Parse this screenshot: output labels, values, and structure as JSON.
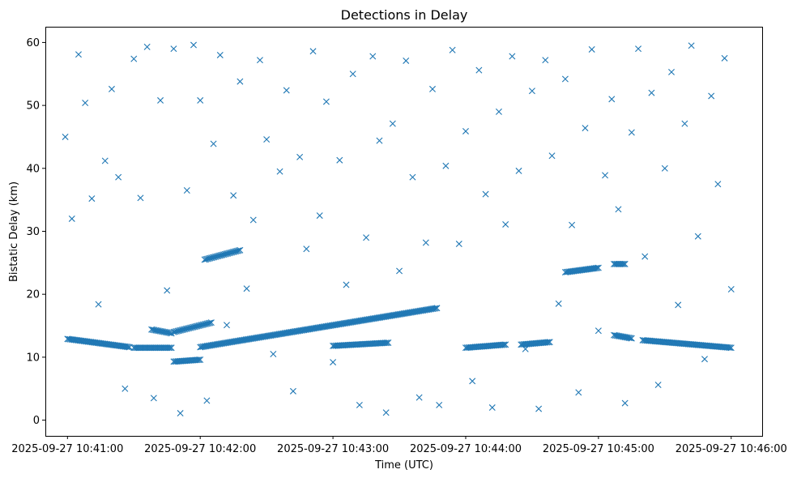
{
  "chart_data": {
    "type": "scatter",
    "title": "Detections in Delay",
    "xlabel": "Time (UTC)",
    "ylabel": "Bistatic Delay (km)",
    "x_ticks": [
      "2025-09-27 10:41:00",
      "2025-09-27 10:42:00",
      "2025-09-27 10:43:00",
      "2025-09-27 10:44:00",
      "2025-09-27 10:45:00",
      "2025-09-27 10:46:00"
    ],
    "y_ticks": [
      "0",
      "10",
      "20",
      "30",
      "40",
      "50",
      "60"
    ],
    "xlim": [
      "2025-09-27 10:40:50",
      "2025-09-27 10:46:14"
    ],
    "ylim": [
      -2.5,
      62.5
    ],
    "grid": false,
    "marker": "x",
    "color": "#1f77b4",
    "series": [
      {
        "tracks": [
          {
            "start": "2025-09-27 10:41:00",
            "end": "2025-09-27 10:41:28",
            "y_start": 12.9,
            "y_end": 11.6
          },
          {
            "start": "2025-09-27 10:41:30",
            "end": "2025-09-27 10:41:47",
            "y_start": 11.5,
            "y_end": 11.5
          },
          {
            "start": "2025-09-27 10:41:38",
            "end": "2025-09-27 10:41:47",
            "y_start": 14.4,
            "y_end": 13.8
          },
          {
            "start": "2025-09-27 10:41:48",
            "end": "2025-09-27 10:42:05",
            "y_start": 14.0,
            "y_end": 15.5
          },
          {
            "start": "2025-09-27 10:41:48",
            "end": "2025-09-27 10:42:00",
            "y_start": 9.3,
            "y_end": 9.6
          },
          {
            "start": "2025-09-27 10:42:00",
            "end": "2025-09-27 10:43:47",
            "y_start": 11.6,
            "y_end": 17.8
          },
          {
            "start": "2025-09-27 10:42:02",
            "end": "2025-09-27 10:42:18",
            "y_start": 25.5,
            "y_end": 27.0
          },
          {
            "start": "2025-09-27 10:43:00",
            "end": "2025-09-27 10:43:25",
            "y_start": 11.8,
            "y_end": 12.3
          },
          {
            "start": "2025-09-27 10:44:00",
            "end": "2025-09-27 10:44:18",
            "y_start": 11.5,
            "y_end": 12.0
          },
          {
            "start": "2025-09-27 10:44:25",
            "end": "2025-09-27 10:44:38",
            "y_start": 12.0,
            "y_end": 12.4
          },
          {
            "start": "2025-09-27 10:44:45",
            "end": "2025-09-27 10:45:00",
            "y_start": 23.5,
            "y_end": 24.2
          },
          {
            "start": "2025-09-27 10:45:07",
            "end": "2025-09-27 10:45:12",
            "y_start": 24.8,
            "y_end": 24.8
          },
          {
            "start": "2025-09-27 10:45:07",
            "end": "2025-09-27 10:45:15",
            "y_start": 13.5,
            "y_end": 13.0
          },
          {
            "start": "2025-09-27 10:45:20",
            "end": "2025-09-27 10:46:00",
            "y_start": 12.7,
            "y_end": 11.5
          }
        ],
        "scattered_detections": [
          [
            "2025-09-27 10:40:59",
            45.0
          ],
          [
            "2025-09-27 10:41:02",
            32.0
          ],
          [
            "2025-09-27 10:41:05",
            58.1
          ],
          [
            "2025-09-27 10:41:08",
            50.4
          ],
          [
            "2025-09-27 10:41:11",
            35.2
          ],
          [
            "2025-09-27 10:41:14",
            18.4
          ],
          [
            "2025-09-27 10:41:17",
            41.2
          ],
          [
            "2025-09-27 10:41:20",
            52.6
          ],
          [
            "2025-09-27 10:41:23",
            38.6
          ],
          [
            "2025-09-27 10:41:26",
            5.0
          ],
          [
            "2025-09-27 10:41:30",
            57.4
          ],
          [
            "2025-09-27 10:41:33",
            35.3
          ],
          [
            "2025-09-27 10:41:36",
            59.3
          ],
          [
            "2025-09-27 10:41:39",
            3.5
          ],
          [
            "2025-09-27 10:41:42",
            50.8
          ],
          [
            "2025-09-27 10:41:45",
            20.6
          ],
          [
            "2025-09-27 10:41:48",
            59.0
          ],
          [
            "2025-09-27 10:41:51",
            1.1
          ],
          [
            "2025-09-27 10:41:54",
            36.5
          ],
          [
            "2025-09-27 10:41:57",
            59.6
          ],
          [
            "2025-09-27 10:42:00",
            50.8
          ],
          [
            "2025-09-27 10:42:03",
            3.1
          ],
          [
            "2025-09-27 10:42:06",
            43.9
          ],
          [
            "2025-09-27 10:42:09",
            58.0
          ],
          [
            "2025-09-27 10:42:12",
            15.1
          ],
          [
            "2025-09-27 10:42:15",
            35.7
          ],
          [
            "2025-09-27 10:42:18",
            53.8
          ],
          [
            "2025-09-27 10:42:21",
            20.9
          ],
          [
            "2025-09-27 10:42:24",
            31.8
          ],
          [
            "2025-09-27 10:42:27",
            57.2
          ],
          [
            "2025-09-27 10:42:30",
            44.6
          ],
          [
            "2025-09-27 10:42:33",
            10.5
          ],
          [
            "2025-09-27 10:42:36",
            39.5
          ],
          [
            "2025-09-27 10:42:39",
            52.4
          ],
          [
            "2025-09-27 10:42:42",
            4.6
          ],
          [
            "2025-09-27 10:42:45",
            41.8
          ],
          [
            "2025-09-27 10:42:48",
            27.2
          ],
          [
            "2025-09-27 10:42:51",
            58.6
          ],
          [
            "2025-09-27 10:42:54",
            32.5
          ],
          [
            "2025-09-27 10:42:57",
            50.6
          ],
          [
            "2025-09-27 10:43:00",
            9.2
          ],
          [
            "2025-09-27 10:43:03",
            41.3
          ],
          [
            "2025-09-27 10:43:06",
            21.5
          ],
          [
            "2025-09-27 10:43:09",
            55.0
          ],
          [
            "2025-09-27 10:43:12",
            2.4
          ],
          [
            "2025-09-27 10:43:15",
            29.0
          ],
          [
            "2025-09-27 10:43:18",
            57.8
          ],
          [
            "2025-09-27 10:43:21",
            44.4
          ],
          [
            "2025-09-27 10:43:24",
            1.2
          ],
          [
            "2025-09-27 10:43:27",
            47.1
          ],
          [
            "2025-09-27 10:43:30",
            23.7
          ],
          [
            "2025-09-27 10:43:33",
            57.1
          ],
          [
            "2025-09-27 10:43:36",
            38.6
          ],
          [
            "2025-09-27 10:43:39",
            3.6
          ],
          [
            "2025-09-27 10:43:42",
            28.2
          ],
          [
            "2025-09-27 10:43:45",
            52.6
          ],
          [
            "2025-09-27 10:43:48",
            2.4
          ],
          [
            "2025-09-27 10:43:51",
            40.4
          ],
          [
            "2025-09-27 10:43:54",
            58.8
          ],
          [
            "2025-09-27 10:43:57",
            28.0
          ],
          [
            "2025-09-27 10:44:00",
            45.9
          ],
          [
            "2025-09-27 10:44:03",
            6.2
          ],
          [
            "2025-09-27 10:44:06",
            55.6
          ],
          [
            "2025-09-27 10:44:09",
            35.9
          ],
          [
            "2025-09-27 10:44:12",
            2.0
          ],
          [
            "2025-09-27 10:44:15",
            49.0
          ],
          [
            "2025-09-27 10:44:18",
            31.1
          ],
          [
            "2025-09-27 10:44:21",
            57.8
          ],
          [
            "2025-09-27 10:44:24",
            39.6
          ],
          [
            "2025-09-27 10:44:27",
            11.3
          ],
          [
            "2025-09-27 10:44:30",
            52.3
          ],
          [
            "2025-09-27 10:44:33",
            1.8
          ],
          [
            "2025-09-27 10:44:36",
            57.2
          ],
          [
            "2025-09-27 10:44:39",
            42.0
          ],
          [
            "2025-09-27 10:44:42",
            18.5
          ],
          [
            "2025-09-27 10:44:45",
            54.2
          ],
          [
            "2025-09-27 10:44:48",
            31.0
          ],
          [
            "2025-09-27 10:44:51",
            4.4
          ],
          [
            "2025-09-27 10:44:54",
            46.4
          ],
          [
            "2025-09-27 10:44:57",
            58.9
          ],
          [
            "2025-09-27 10:45:00",
            14.2
          ],
          [
            "2025-09-27 10:45:03",
            38.9
          ],
          [
            "2025-09-27 10:45:06",
            51.0
          ],
          [
            "2025-09-27 10:45:09",
            33.5
          ],
          [
            "2025-09-27 10:45:12",
            2.7
          ],
          [
            "2025-09-27 10:45:15",
            45.7
          ],
          [
            "2025-09-27 10:45:18",
            59.0
          ],
          [
            "2025-09-27 10:45:21",
            26.0
          ],
          [
            "2025-09-27 10:45:24",
            52.0
          ],
          [
            "2025-09-27 10:45:27",
            5.6
          ],
          [
            "2025-09-27 10:45:30",
            40.0
          ],
          [
            "2025-09-27 10:45:33",
            55.3
          ],
          [
            "2025-09-27 10:45:36",
            18.3
          ],
          [
            "2025-09-27 10:45:39",
            47.1
          ],
          [
            "2025-09-27 10:45:42",
            59.5
          ],
          [
            "2025-09-27 10:45:45",
            29.2
          ],
          [
            "2025-09-27 10:45:48",
            9.7
          ],
          [
            "2025-09-27 10:45:51",
            51.5
          ],
          [
            "2025-09-27 10:45:54",
            37.5
          ],
          [
            "2025-09-27 10:45:57",
            57.5
          ],
          [
            "2025-09-27 10:46:00",
            20.8
          ]
        ]
      }
    ]
  }
}
